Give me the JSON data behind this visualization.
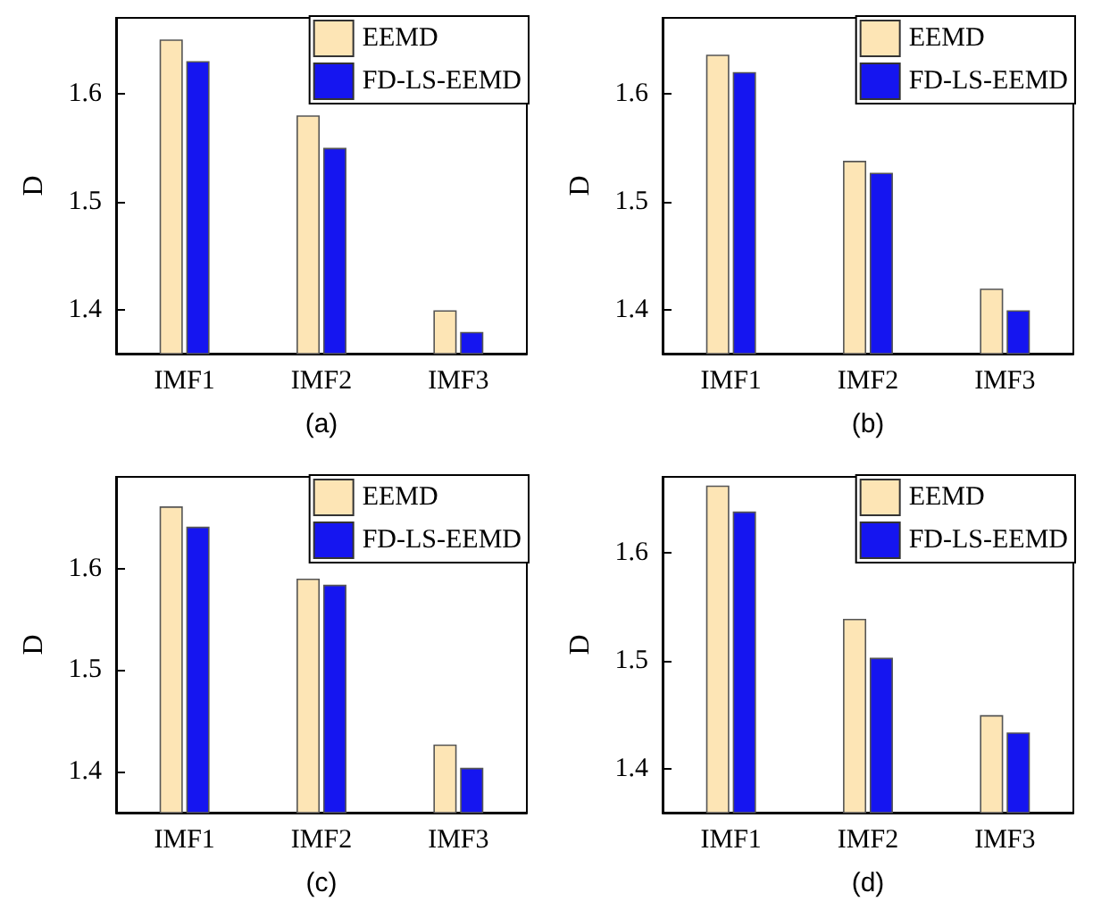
{
  "chart_data": [
    {
      "type": "bar",
      "xlabel": "(a)",
      "ylabel": "D",
      "categories": [
        "IMF1",
        "IMF2",
        "IMF3"
      ],
      "ylim": [
        1.36,
        1.67
      ],
      "yticks": [
        1.4,
        1.5,
        1.6
      ],
      "legend": "top right",
      "grid": false,
      "series": [
        {
          "name": "EEMD",
          "color": "#fde5b5",
          "values": [
            1.65,
            1.58,
            1.4
          ]
        },
        {
          "name": "FD-LS-EEMD",
          "color": "#1515f0",
          "values": [
            1.63,
            1.55,
            1.38
          ]
        }
      ]
    },
    {
      "type": "bar",
      "xlabel": "(b)",
      "ylabel": "D",
      "categories": [
        "IMF1",
        "IMF2",
        "IMF3"
      ],
      "ylim": [
        1.36,
        1.67
      ],
      "yticks": [
        1.4,
        1.5,
        1.6
      ],
      "legend": "top right",
      "grid": false,
      "series": [
        {
          "name": "EEMD",
          "color": "#fde5b5",
          "values": [
            1.636,
            1.538,
            1.42
          ]
        },
        {
          "name": "FD-LS-EEMD",
          "color": "#1515f0",
          "values": [
            1.62,
            1.527,
            1.4
          ]
        }
      ]
    },
    {
      "type": "bar",
      "xlabel": "(c)",
      "ylabel": "D",
      "categories": [
        "IMF1",
        "IMF2",
        "IMF3"
      ],
      "ylim": [
        1.36,
        1.69
      ],
      "yticks": [
        1.4,
        1.5,
        1.6
      ],
      "legend": "top right",
      "grid": false,
      "series": [
        {
          "name": "EEMD",
          "color": "#fde5b5",
          "values": [
            1.661,
            1.59,
            1.427
          ]
        },
        {
          "name": "FD-LS-EEMD",
          "color": "#1515f0",
          "values": [
            1.641,
            1.584,
            1.404
          ]
        }
      ]
    },
    {
      "type": "bar",
      "xlabel": "(d)",
      "ylabel": "D",
      "categories": [
        "IMF1",
        "IMF2",
        "IMF3"
      ],
      "ylim": [
        1.36,
        1.67
      ],
      "yticks": [
        1.4,
        1.5,
        1.6
      ],
      "legend": "top right",
      "grid": false,
      "series": [
        {
          "name": "EEMD",
          "color": "#fde5b5",
          "values": [
            1.662,
            1.539,
            1.45
          ]
        },
        {
          "name": "FD-LS-EEMD",
          "color": "#1515f0",
          "values": [
            1.638,
            1.503,
            1.434
          ]
        }
      ]
    }
  ]
}
